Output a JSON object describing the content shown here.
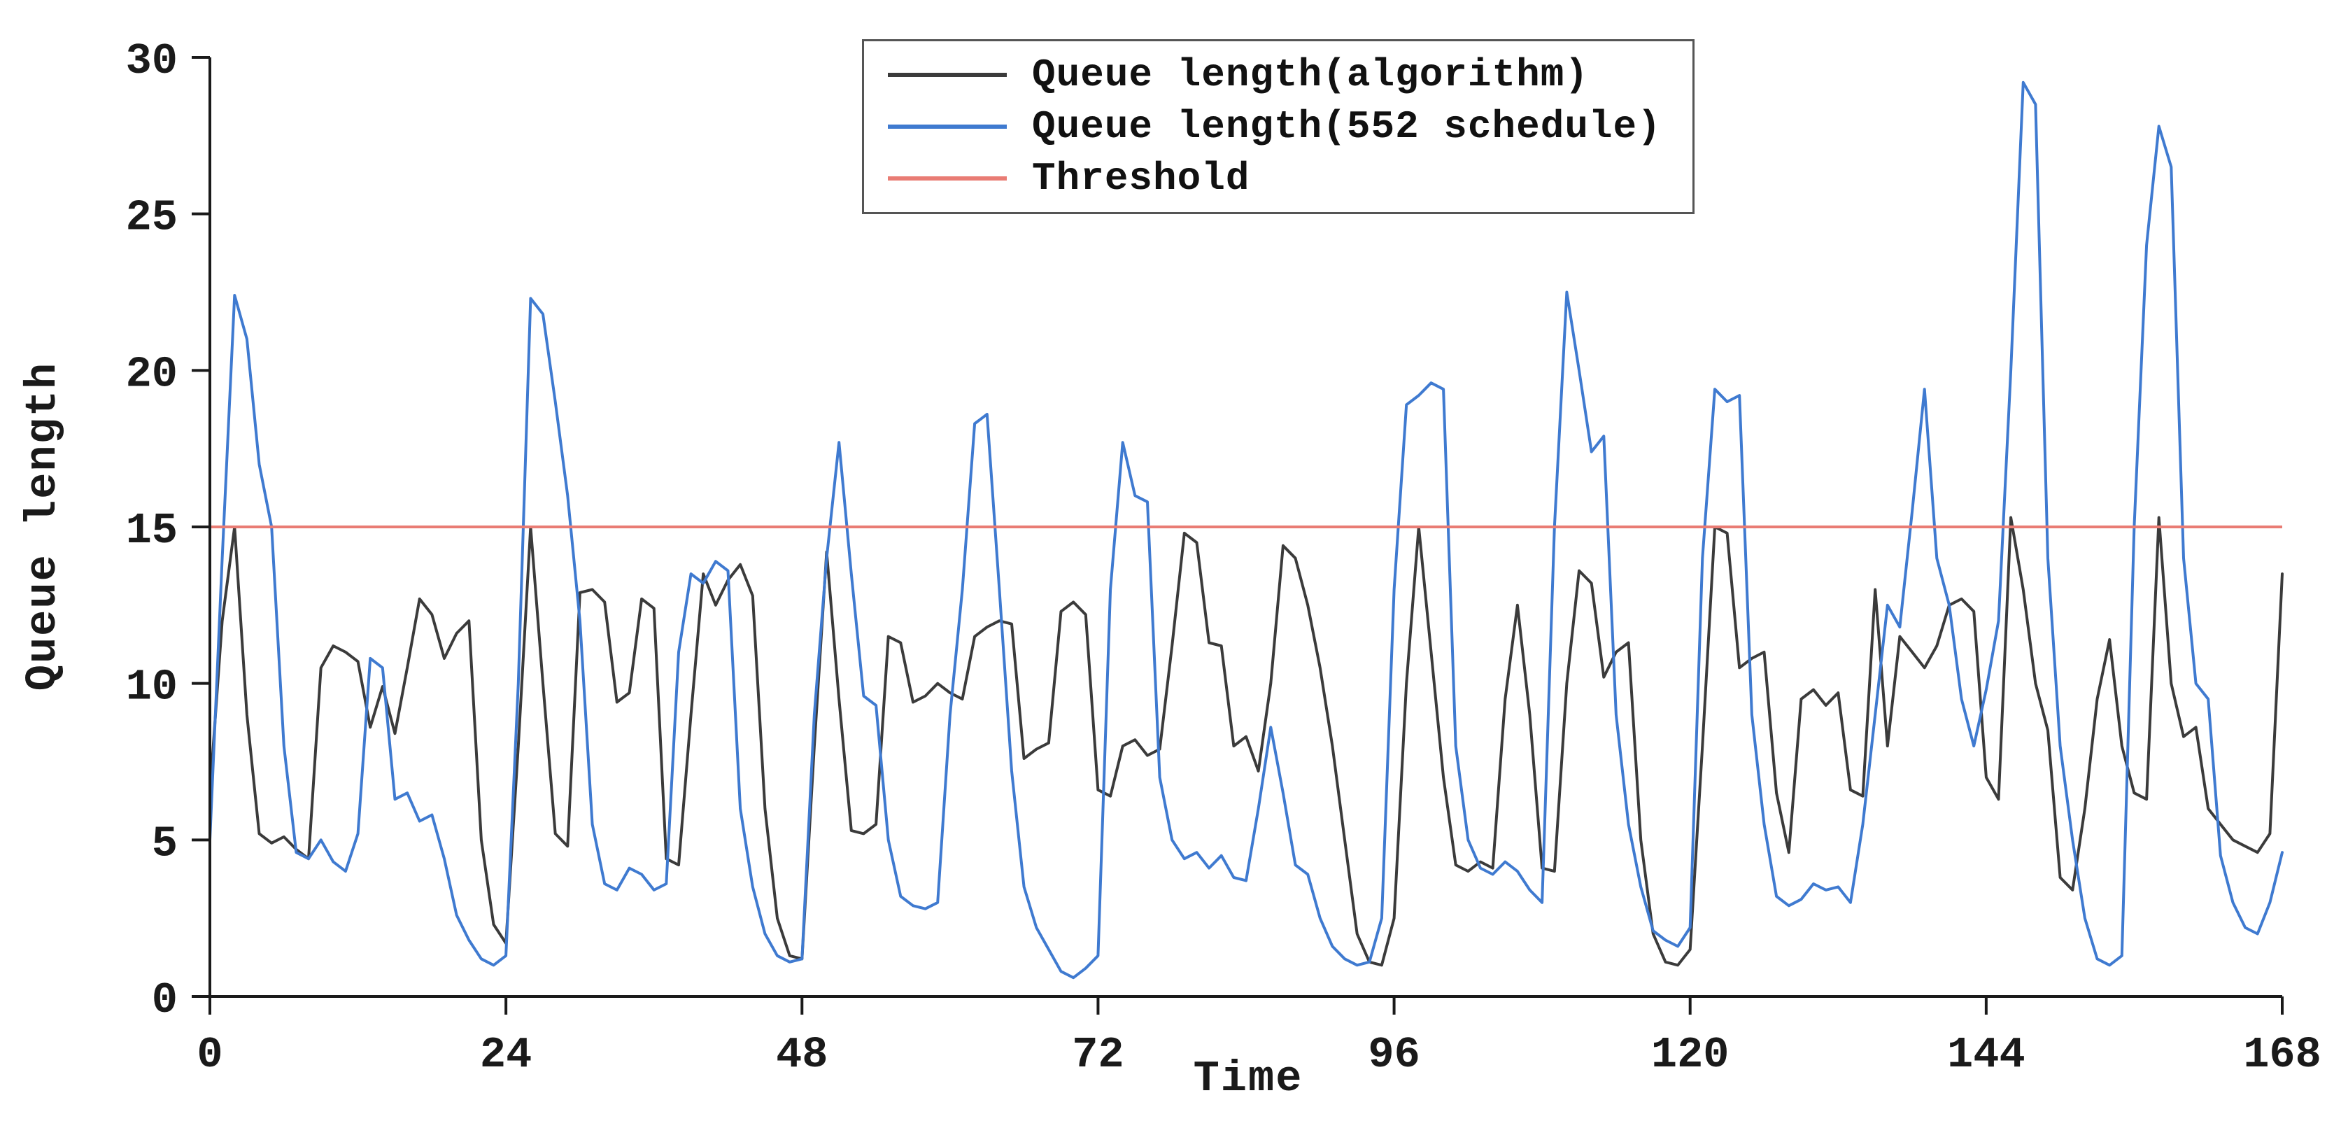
{
  "figure": {
    "background": "#ffffff",
    "axis_color": "#1a1a1a"
  },
  "chart_data": {
    "type": "line",
    "title": "",
    "xlabel": "Time",
    "ylabel": "Queue length",
    "xlim": [
      0,
      168
    ],
    "ylim": [
      0,
      30
    ],
    "xticks": [
      0,
      24,
      48,
      72,
      96,
      120,
      144,
      168
    ],
    "yticks": [
      0,
      5,
      10,
      15,
      20,
      25,
      30
    ],
    "x_step": 1,
    "grid": false,
    "legend_position": "upper center",
    "series": [
      {
        "name": "Queue length(algorithm)",
        "color": "#3b3b3b",
        "values": [
          6.5,
          12,
          15,
          9,
          5.2,
          4.9,
          5.1,
          4.7,
          4.4,
          10.5,
          11.2,
          11,
          10.7,
          8.6,
          9.9,
          8.4,
          10.5,
          12.7,
          12.2,
          10.8,
          11.6,
          12,
          5,
          2.3,
          1.7,
          8,
          15,
          10,
          5.2,
          4.8,
          12.9,
          13,
          12.6,
          9.4,
          9.7,
          12.7,
          12.4,
          4.4,
          4.2,
          9,
          13.5,
          12.5,
          13.3,
          13.8,
          12.8,
          6,
          2.5,
          1.3,
          1.2,
          8,
          14.2,
          9.5,
          5.3,
          5.2,
          5.5,
          11.5,
          11.3,
          9.4,
          9.6,
          10,
          9.7,
          9.5,
          11.5,
          11.8,
          12,
          11.9,
          7.6,
          7.9,
          8.1,
          12.3,
          12.6,
          12.2,
          6.6,
          6.4,
          8,
          8.2,
          7.7,
          7.9,
          11.2,
          14.8,
          14.5,
          11.3,
          11.2,
          8,
          8.3,
          7.2,
          10,
          14.4,
          14,
          12.5,
          10.5,
          8,
          5,
          2,
          1.1,
          1,
          2.5,
          10,
          15,
          11,
          7,
          4.2,
          4,
          4.3,
          4.1,
          9.5,
          12.5,
          9,
          4.1,
          4,
          10,
          13.6,
          13.2,
          10.2,
          11,
          11.3,
          5,
          2,
          1.1,
          1,
          1.5,
          8,
          15,
          14.8,
          10.5,
          10.8,
          11,
          6.5,
          4.6,
          9.5,
          9.8,
          9.3,
          9.7,
          6.6,
          6.4,
          13,
          8,
          11.5,
          11,
          10.5,
          11.2,
          12.5,
          12.7,
          12.3,
          7,
          6.3,
          15.3,
          13,
          10,
          8.5,
          3.8,
          3.4,
          6,
          9.5,
          11.4,
          8,
          6.5,
          6.3,
          15.3,
          10,
          8.3,
          8.6,
          6,
          5.5,
          5,
          4.8,
          4.6,
          5.2,
          13.5
        ]
      },
      {
        "name": "Queue length(552 schedule)",
        "color": "#3f7ad0",
        "values": [
          5,
          14,
          22.4,
          21,
          17,
          15,
          8,
          4.6,
          4.4,
          5,
          4.3,
          4,
          5.2,
          10.8,
          10.5,
          6.3,
          6.5,
          5.6,
          5.8,
          4.4,
          2.6,
          1.8,
          1.2,
          1,
          1.3,
          10,
          22.3,
          21.8,
          19,
          16,
          12,
          5.5,
          3.6,
          3.4,
          4.1,
          3.9,
          3.4,
          3.6,
          11,
          13.5,
          13.2,
          13.9,
          13.6,
          6,
          3.5,
          2,
          1.3,
          1.1,
          1.2,
          9,
          14,
          17.7,
          13.5,
          9.6,
          9.3,
          5,
          3.2,
          2.9,
          2.8,
          3,
          9,
          13,
          18.3,
          18.6,
          13,
          7.2,
          3.5,
          2.2,
          1.5,
          0.8,
          0.6,
          0.9,
          1.3,
          13,
          17.7,
          16,
          15.8,
          7,
          5,
          4.4,
          4.6,
          4.1,
          4.5,
          3.8,
          3.7,
          6,
          8.6,
          6.5,
          4.2,
          3.9,
          2.5,
          1.6,
          1.2,
          1,
          1.1,
          2.5,
          13,
          18.9,
          19.2,
          19.6,
          19.4,
          8,
          5,
          4.1,
          3.9,
          4.3,
          4,
          3.4,
          3,
          15,
          22.5,
          20,
          17.4,
          17.9,
          9,
          5.5,
          3.5,
          2.1,
          1.8,
          1.6,
          2.2,
          14,
          19.4,
          19,
          19.2,
          9,
          5.5,
          3.2,
          2.9,
          3.1,
          3.6,
          3.4,
          3.5,
          3,
          5.5,
          9,
          12.5,
          11.8,
          15.5,
          19.4,
          14,
          12.5,
          9.5,
          8,
          9.8,
          12,
          20,
          29.2,
          28.5,
          14,
          8,
          5,
          2.5,
          1.2,
          1,
          1.3,
          15,
          24,
          27.8,
          26.5,
          14,
          10,
          9.5,
          4.5,
          3,
          2.2,
          2,
          3,
          4.6
        ]
      }
    ],
    "threshold": {
      "label": "Threshold",
      "value": 15,
      "color": "#e97c74"
    }
  }
}
